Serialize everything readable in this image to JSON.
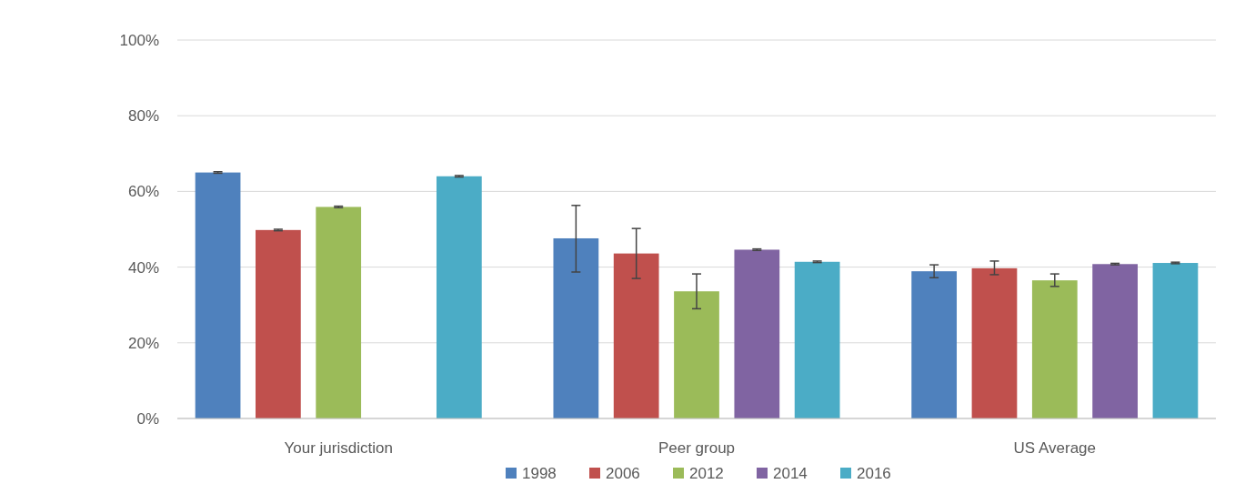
{
  "chart_data": {
    "type": "bar",
    "categories": [
      "Your jurisdiction",
      "Peer group",
      "US Average"
    ],
    "series": [
      {
        "name": "1998",
        "color": "#4f81bd",
        "values": [
          65,
          47.6,
          38.9
        ],
        "errors": [
          0.2,
          [
            38.7,
            56.3
          ],
          [
            37.2,
            40.6
          ]
        ]
      },
      {
        "name": "2006",
        "color": "#c0504d",
        "values": [
          49.8,
          43.6,
          39.7
        ],
        "errors": [
          0.2,
          [
            37,
            50.2
          ],
          [
            38,
            41.6
          ]
        ]
      },
      {
        "name": "2012",
        "color": "#9bbb59",
        "values": [
          55.9,
          33.6,
          36.5
        ],
        "errors": [
          0.2,
          [
            29,
            38.2
          ],
          [
            34.9,
            38.2
          ]
        ]
      },
      {
        "name": "2014",
        "color": "#8064a2",
        "values": [
          null,
          44.6,
          40.8
        ],
        "errors": [
          null,
          0.2,
          0.2
        ]
      },
      {
        "name": "2016",
        "color": "#4bacc6",
        "values": [
          64,
          41.4,
          41.1
        ],
        "errors": [
          0.2,
          0.2,
          0.2
        ]
      }
    ],
    "ylim": [
      0,
      100
    ],
    "yticks": [
      {
        "value": 0,
        "label": "0%"
      },
      {
        "value": 20,
        "label": "20%"
      },
      {
        "value": 40,
        "label": "40%"
      },
      {
        "value": 60,
        "label": "60%"
      },
      {
        "value": 80,
        "label": "80%"
      },
      {
        "value": 100,
        "label": "100%"
      }
    ],
    "grid": "y",
    "legend": "bottom"
  }
}
